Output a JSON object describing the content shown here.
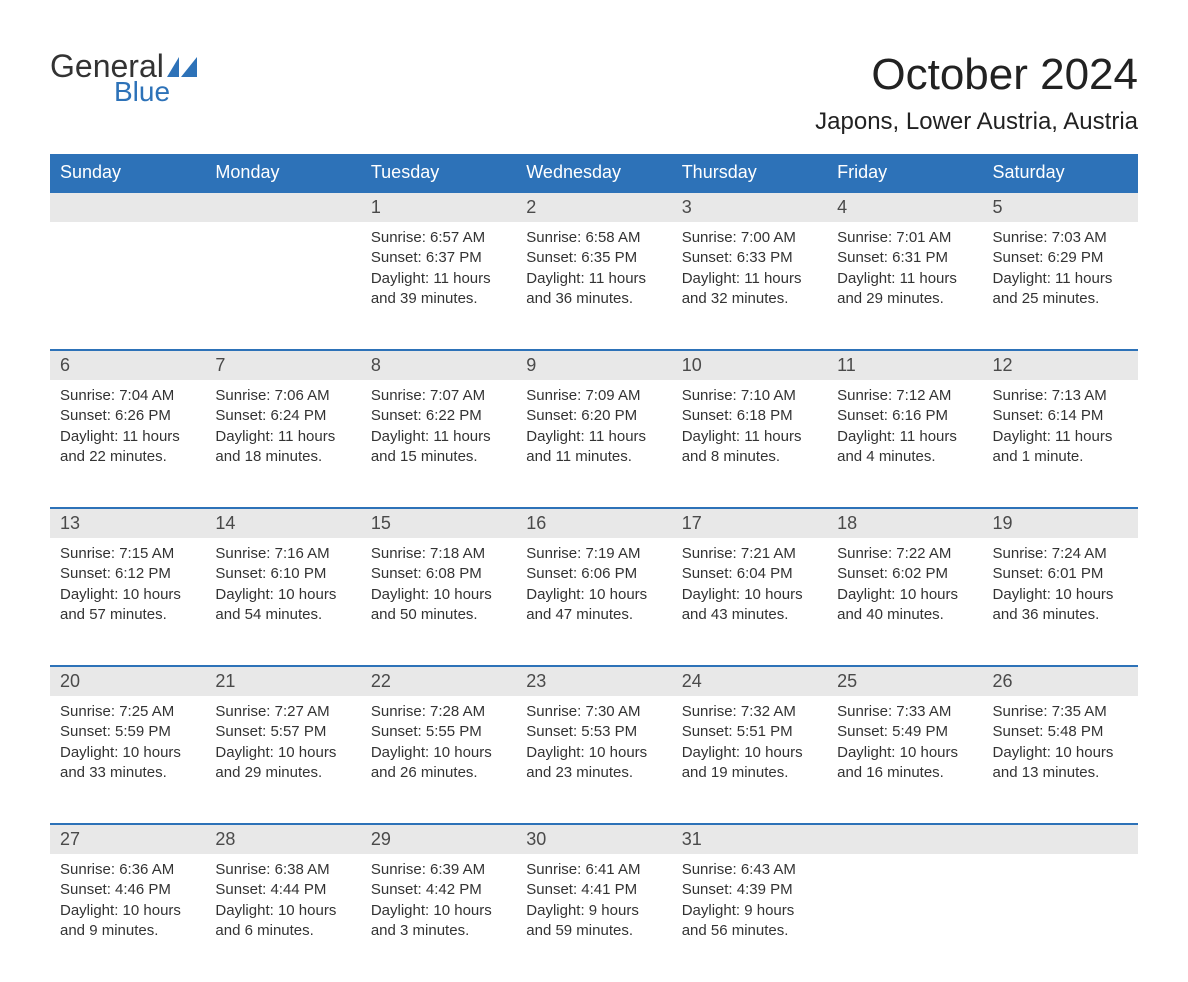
{
  "logo": {
    "text_general": "General",
    "text_blue": "Blue",
    "flag_color": "#2d72b8"
  },
  "title": "October 2024",
  "location": "Japons, Lower Austria, Austria",
  "header_bg": "#2d72b8",
  "header_text_color": "#ffffff",
  "daynum_bg": "#e8e8e8",
  "border_color": "#2d72b8",
  "days_of_week": [
    "Sunday",
    "Monday",
    "Tuesday",
    "Wednesday",
    "Thursday",
    "Friday",
    "Saturday"
  ],
  "weeks": [
    [
      null,
      null,
      {
        "n": "1",
        "sunrise": "Sunrise: 6:57 AM",
        "sunset": "Sunset: 6:37 PM",
        "d1": "Daylight: 11 hours",
        "d2": "and 39 minutes."
      },
      {
        "n": "2",
        "sunrise": "Sunrise: 6:58 AM",
        "sunset": "Sunset: 6:35 PM",
        "d1": "Daylight: 11 hours",
        "d2": "and 36 minutes."
      },
      {
        "n": "3",
        "sunrise": "Sunrise: 7:00 AM",
        "sunset": "Sunset: 6:33 PM",
        "d1": "Daylight: 11 hours",
        "d2": "and 32 minutes."
      },
      {
        "n": "4",
        "sunrise": "Sunrise: 7:01 AM",
        "sunset": "Sunset: 6:31 PM",
        "d1": "Daylight: 11 hours",
        "d2": "and 29 minutes."
      },
      {
        "n": "5",
        "sunrise": "Sunrise: 7:03 AM",
        "sunset": "Sunset: 6:29 PM",
        "d1": "Daylight: 11 hours",
        "d2": "and 25 minutes."
      }
    ],
    [
      {
        "n": "6",
        "sunrise": "Sunrise: 7:04 AM",
        "sunset": "Sunset: 6:26 PM",
        "d1": "Daylight: 11 hours",
        "d2": "and 22 minutes."
      },
      {
        "n": "7",
        "sunrise": "Sunrise: 7:06 AM",
        "sunset": "Sunset: 6:24 PM",
        "d1": "Daylight: 11 hours",
        "d2": "and 18 minutes."
      },
      {
        "n": "8",
        "sunrise": "Sunrise: 7:07 AM",
        "sunset": "Sunset: 6:22 PM",
        "d1": "Daylight: 11 hours",
        "d2": "and 15 minutes."
      },
      {
        "n": "9",
        "sunrise": "Sunrise: 7:09 AM",
        "sunset": "Sunset: 6:20 PM",
        "d1": "Daylight: 11 hours",
        "d2": "and 11 minutes."
      },
      {
        "n": "10",
        "sunrise": "Sunrise: 7:10 AM",
        "sunset": "Sunset: 6:18 PM",
        "d1": "Daylight: 11 hours",
        "d2": "and 8 minutes."
      },
      {
        "n": "11",
        "sunrise": "Sunrise: 7:12 AM",
        "sunset": "Sunset: 6:16 PM",
        "d1": "Daylight: 11 hours",
        "d2": "and 4 minutes."
      },
      {
        "n": "12",
        "sunrise": "Sunrise: 7:13 AM",
        "sunset": "Sunset: 6:14 PM",
        "d1": "Daylight: 11 hours",
        "d2": "and 1 minute."
      }
    ],
    [
      {
        "n": "13",
        "sunrise": "Sunrise: 7:15 AM",
        "sunset": "Sunset: 6:12 PM",
        "d1": "Daylight: 10 hours",
        "d2": "and 57 minutes."
      },
      {
        "n": "14",
        "sunrise": "Sunrise: 7:16 AM",
        "sunset": "Sunset: 6:10 PM",
        "d1": "Daylight: 10 hours",
        "d2": "and 54 minutes."
      },
      {
        "n": "15",
        "sunrise": "Sunrise: 7:18 AM",
        "sunset": "Sunset: 6:08 PM",
        "d1": "Daylight: 10 hours",
        "d2": "and 50 minutes."
      },
      {
        "n": "16",
        "sunrise": "Sunrise: 7:19 AM",
        "sunset": "Sunset: 6:06 PM",
        "d1": "Daylight: 10 hours",
        "d2": "and 47 minutes."
      },
      {
        "n": "17",
        "sunrise": "Sunrise: 7:21 AM",
        "sunset": "Sunset: 6:04 PM",
        "d1": "Daylight: 10 hours",
        "d2": "and 43 minutes."
      },
      {
        "n": "18",
        "sunrise": "Sunrise: 7:22 AM",
        "sunset": "Sunset: 6:02 PM",
        "d1": "Daylight: 10 hours",
        "d2": "and 40 minutes."
      },
      {
        "n": "19",
        "sunrise": "Sunrise: 7:24 AM",
        "sunset": "Sunset: 6:01 PM",
        "d1": "Daylight: 10 hours",
        "d2": "and 36 minutes."
      }
    ],
    [
      {
        "n": "20",
        "sunrise": "Sunrise: 7:25 AM",
        "sunset": "Sunset: 5:59 PM",
        "d1": "Daylight: 10 hours",
        "d2": "and 33 minutes."
      },
      {
        "n": "21",
        "sunrise": "Sunrise: 7:27 AM",
        "sunset": "Sunset: 5:57 PM",
        "d1": "Daylight: 10 hours",
        "d2": "and 29 minutes."
      },
      {
        "n": "22",
        "sunrise": "Sunrise: 7:28 AM",
        "sunset": "Sunset: 5:55 PM",
        "d1": "Daylight: 10 hours",
        "d2": "and 26 minutes."
      },
      {
        "n": "23",
        "sunrise": "Sunrise: 7:30 AM",
        "sunset": "Sunset: 5:53 PM",
        "d1": "Daylight: 10 hours",
        "d2": "and 23 minutes."
      },
      {
        "n": "24",
        "sunrise": "Sunrise: 7:32 AM",
        "sunset": "Sunset: 5:51 PM",
        "d1": "Daylight: 10 hours",
        "d2": "and 19 minutes."
      },
      {
        "n": "25",
        "sunrise": "Sunrise: 7:33 AM",
        "sunset": "Sunset: 5:49 PM",
        "d1": "Daylight: 10 hours",
        "d2": "and 16 minutes."
      },
      {
        "n": "26",
        "sunrise": "Sunrise: 7:35 AM",
        "sunset": "Sunset: 5:48 PM",
        "d1": "Daylight: 10 hours",
        "d2": "and 13 minutes."
      }
    ],
    [
      {
        "n": "27",
        "sunrise": "Sunrise: 6:36 AM",
        "sunset": "Sunset: 4:46 PM",
        "d1": "Daylight: 10 hours",
        "d2": "and 9 minutes."
      },
      {
        "n": "28",
        "sunrise": "Sunrise: 6:38 AM",
        "sunset": "Sunset: 4:44 PM",
        "d1": "Daylight: 10 hours",
        "d2": "and 6 minutes."
      },
      {
        "n": "29",
        "sunrise": "Sunrise: 6:39 AM",
        "sunset": "Sunset: 4:42 PM",
        "d1": "Daylight: 10 hours",
        "d2": "and 3 minutes."
      },
      {
        "n": "30",
        "sunrise": "Sunrise: 6:41 AM",
        "sunset": "Sunset: 4:41 PM",
        "d1": "Daylight: 9 hours",
        "d2": "and 59 minutes."
      },
      {
        "n": "31",
        "sunrise": "Sunrise: 6:43 AM",
        "sunset": "Sunset: 4:39 PM",
        "d1": "Daylight: 9 hours",
        "d2": "and 56 minutes."
      },
      null,
      null
    ]
  ]
}
